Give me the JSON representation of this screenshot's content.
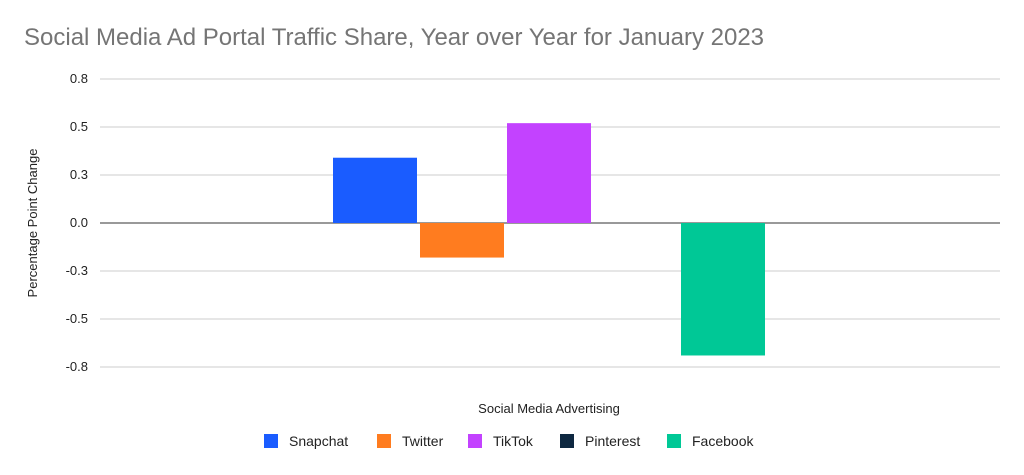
{
  "chart_data": {
    "type": "bar",
    "title": "Social Media Ad Portal Traffic Share, Year over Year for January 2023",
    "xlabel": "Social Media Advertising",
    "ylabel": "Percentage Point Change",
    "ylim": [
      -0.75,
      0.75
    ],
    "yticks": [
      0.75,
      0.5,
      0.25,
      0,
      -0.25,
      -0.5,
      -0.75
    ],
    "ytick_labels": [
      "0.8",
      "0.5",
      "0.3",
      "0.0",
      "-0.3",
      "-0.5",
      "-0.8"
    ],
    "grid": true,
    "legend_position": "bottom",
    "series": [
      {
        "name": "Snapchat",
        "value": 0.34,
        "color": "#1a5cff"
      },
      {
        "name": "Twitter",
        "value": -0.18,
        "color": "#ff7c1f"
      },
      {
        "name": "TikTok",
        "value": 0.52,
        "color": "#c342ff"
      },
      {
        "name": "Pinterest",
        "value": 0,
        "color": "#0e2841"
      },
      {
        "name": "Facebook",
        "value": -0.69,
        "color": "#00c896"
      }
    ]
  }
}
